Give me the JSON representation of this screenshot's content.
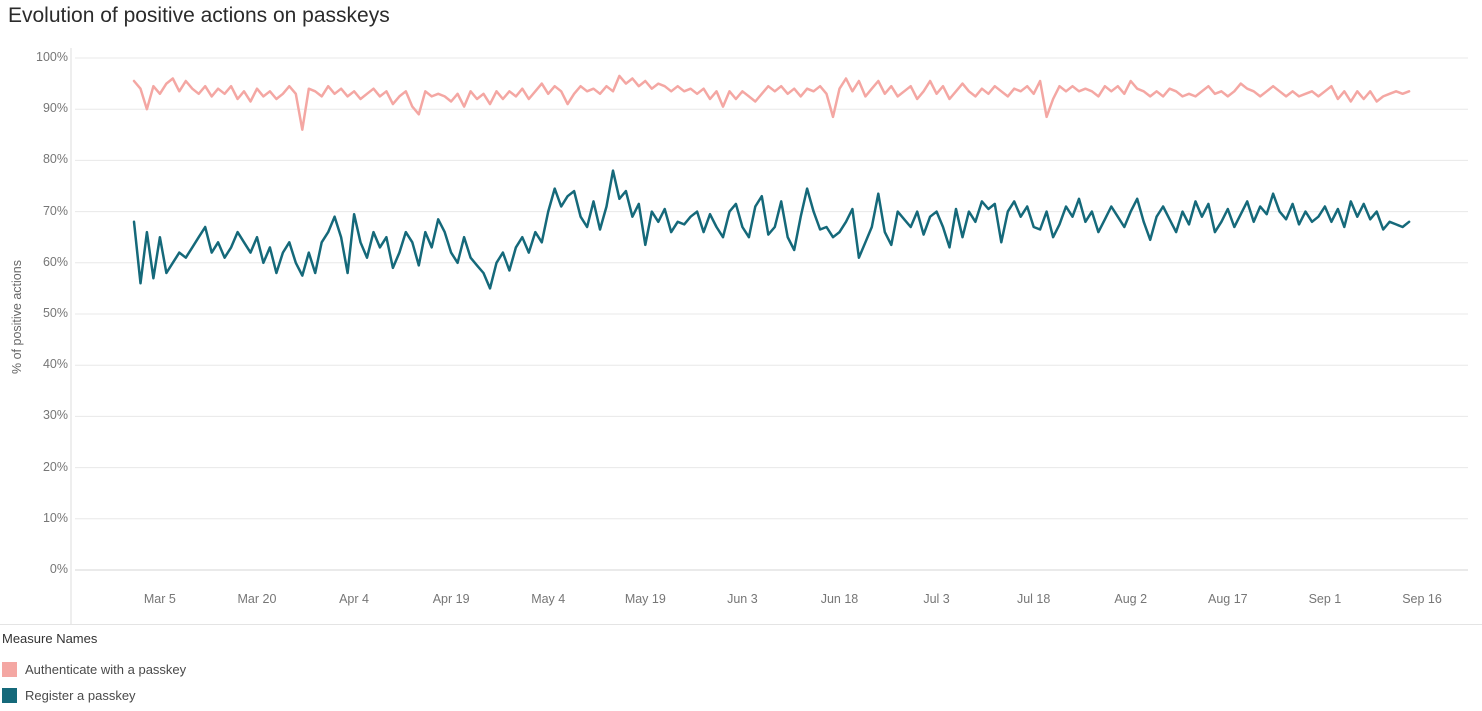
{
  "page": {
    "title": "Evolution of positive actions on passkeys"
  },
  "legend": {
    "title": "Measure Names"
  },
  "chart_data": {
    "type": "line",
    "title": "Evolution of positive actions on passkeys",
    "xlabel": "",
    "ylabel": "% of positive actions",
    "ylim": [
      0,
      100
    ],
    "y_ticks": [
      0,
      10,
      20,
      30,
      40,
      50,
      60,
      70,
      80,
      90,
      100
    ],
    "y_tick_suffix": "%",
    "grid": "horizontal",
    "legend_position": "bottom-left",
    "x_axis": {
      "unit": "day",
      "series_start_label": "Mar 1",
      "total_days": 199,
      "ticks": [
        {
          "label": "Mar 5",
          "day": 4
        },
        {
          "label": "Mar 20",
          "day": 19
        },
        {
          "label": "Apr 4",
          "day": 34
        },
        {
          "label": "Apr 19",
          "day": 49
        },
        {
          "label": "May 4",
          "day": 64
        },
        {
          "label": "May 19",
          "day": 79
        },
        {
          "label": "Jun 3",
          "day": 94
        },
        {
          "label": "Jun 18",
          "day": 109
        },
        {
          "label": "Jul 3",
          "day": 124
        },
        {
          "label": "Jul 18",
          "day": 139
        },
        {
          "label": "Aug 2",
          "day": 154
        },
        {
          "label": "Aug 17",
          "day": 169
        },
        {
          "label": "Sep 1",
          "day": 184
        },
        {
          "label": "Sep 16",
          "day": 199
        }
      ]
    },
    "series": [
      {
        "name": "Authenticate with a passkey",
        "color": "#f4a7a3",
        "values": [
          95.5,
          94,
          90,
          94.5,
          93,
          95,
          96,
          93.5,
          95.5,
          94,
          93,
          94.5,
          92.5,
          94,
          93,
          94.5,
          92,
          93.5,
          91.5,
          94,
          92.5,
          93.5,
          92,
          93,
          94.5,
          93,
          86,
          94,
          93.5,
          92.5,
          94.5,
          93,
          94,
          92.5,
          93.5,
          92,
          93,
          94,
          92.5,
          93.5,
          91,
          92.5,
          93.5,
          90.5,
          89,
          93.5,
          92.5,
          93,
          92.5,
          91.5,
          93,
          90.5,
          93.5,
          92,
          93,
          91,
          93.5,
          92,
          93.5,
          92.5,
          94,
          92,
          93.5,
          95,
          93,
          94.5,
          93.5,
          91,
          93,
          94.5,
          93.5,
          94,
          93,
          94.5,
          93.5,
          96.5,
          95,
          96,
          94.5,
          95.5,
          94,
          95,
          94.5,
          93.5,
          94.5,
          93.5,
          94,
          93,
          94,
          92,
          93.5,
          90.5,
          93.5,
          92,
          93.5,
          92.5,
          91.5,
          93,
          94.5,
          93.5,
          94.5,
          93,
          94,
          92.5,
          94,
          93.5,
          94.5,
          93,
          88.5,
          94,
          96,
          93.5,
          95.5,
          92.5,
          94,
          95.5,
          93,
          94.5,
          92.5,
          93.5,
          94.5,
          92,
          93.5,
          95.5,
          93,
          94.5,
          92,
          93.5,
          95,
          93.5,
          92.5,
          94,
          93,
          94.5,
          93.5,
          92.5,
          94,
          93.5,
          94.5,
          93,
          95.5,
          88.5,
          92,
          94.5,
          93.5,
          94.5,
          93.5,
          94,
          93.5,
          92.5,
          94.5,
          93.5,
          94.5,
          93,
          95.5,
          94,
          93.5,
          92.5,
          93.5,
          92.5,
          94,
          93.5,
          92.5,
          93,
          92.5,
          93.5,
          94.5,
          93,
          93.5,
          92.5,
          93.5,
          95,
          94,
          93.5,
          92.5,
          93.5,
          94.5,
          93.5,
          92.5,
          93.5,
          92.5,
          93,
          93.5,
          92.5,
          93.5,
          94.5,
          92,
          93.5,
          91.5,
          93.5,
          92,
          93.5,
          91.5,
          92.5,
          93,
          93.5,
          93,
          93.5
        ]
      },
      {
        "name": "Register a passkey",
        "color": "#15697a",
        "values": [
          68,
          56,
          66,
          57,
          65,
          58,
          60,
          62,
          61,
          63,
          65,
          67,
          62,
          64,
          61,
          63,
          66,
          64,
          62,
          65,
          60,
          63,
          58,
          62,
          64,
          60,
          57.5,
          62,
          58,
          64,
          66,
          69,
          65,
          58,
          69.5,
          64,
          61,
          66,
          63,
          65,
          59,
          62,
          66,
          64,
          59.5,
          66,
          63,
          68.5,
          66,
          62,
          60,
          65,
          61,
          59.5,
          58,
          55,
          60,
          62,
          58.5,
          63,
          65,
          62,
          66,
          64,
          70,
          74.5,
          71,
          73,
          74,
          69,
          67,
          72,
          66.5,
          71,
          78,
          72.5,
          74,
          69,
          71.5,
          63.5,
          70,
          68,
          70.5,
          66,
          68,
          67.5,
          69,
          70,
          66,
          69.5,
          67,
          65,
          70,
          71.5,
          67,
          65,
          71,
          73,
          65.5,
          67,
          72,
          65,
          62.5,
          69,
          74.5,
          70,
          66.5,
          67,
          65,
          66,
          68,
          70.5,
          61,
          64,
          67,
          73.5,
          66,
          63.5,
          70,
          68.5,
          67,
          70,
          65.5,
          69,
          70,
          67,
          63,
          70.5,
          65,
          70,
          68,
          72,
          70.5,
          71.5,
          64,
          70,
          72,
          69,
          71,
          67,
          66.5,
          70,
          65,
          67.5,
          71,
          69,
          72.5,
          68,
          70,
          66,
          68.5,
          71,
          69,
          67,
          70,
          72.5,
          68,
          64.5,
          69,
          71,
          68.5,
          66,
          70,
          67.5,
          72,
          69,
          71.5,
          66,
          68,
          70.5,
          67,
          69.5,
          72,
          68,
          71,
          69.5,
          73.5,
          70,
          68.5,
          71.5,
          67.5,
          70,
          68,
          69,
          71,
          68,
          70.5,
          67,
          72,
          69,
          71.5,
          68.5,
          70,
          66.5,
          68,
          67.5,
          67,
          68
        ]
      }
    ]
  }
}
